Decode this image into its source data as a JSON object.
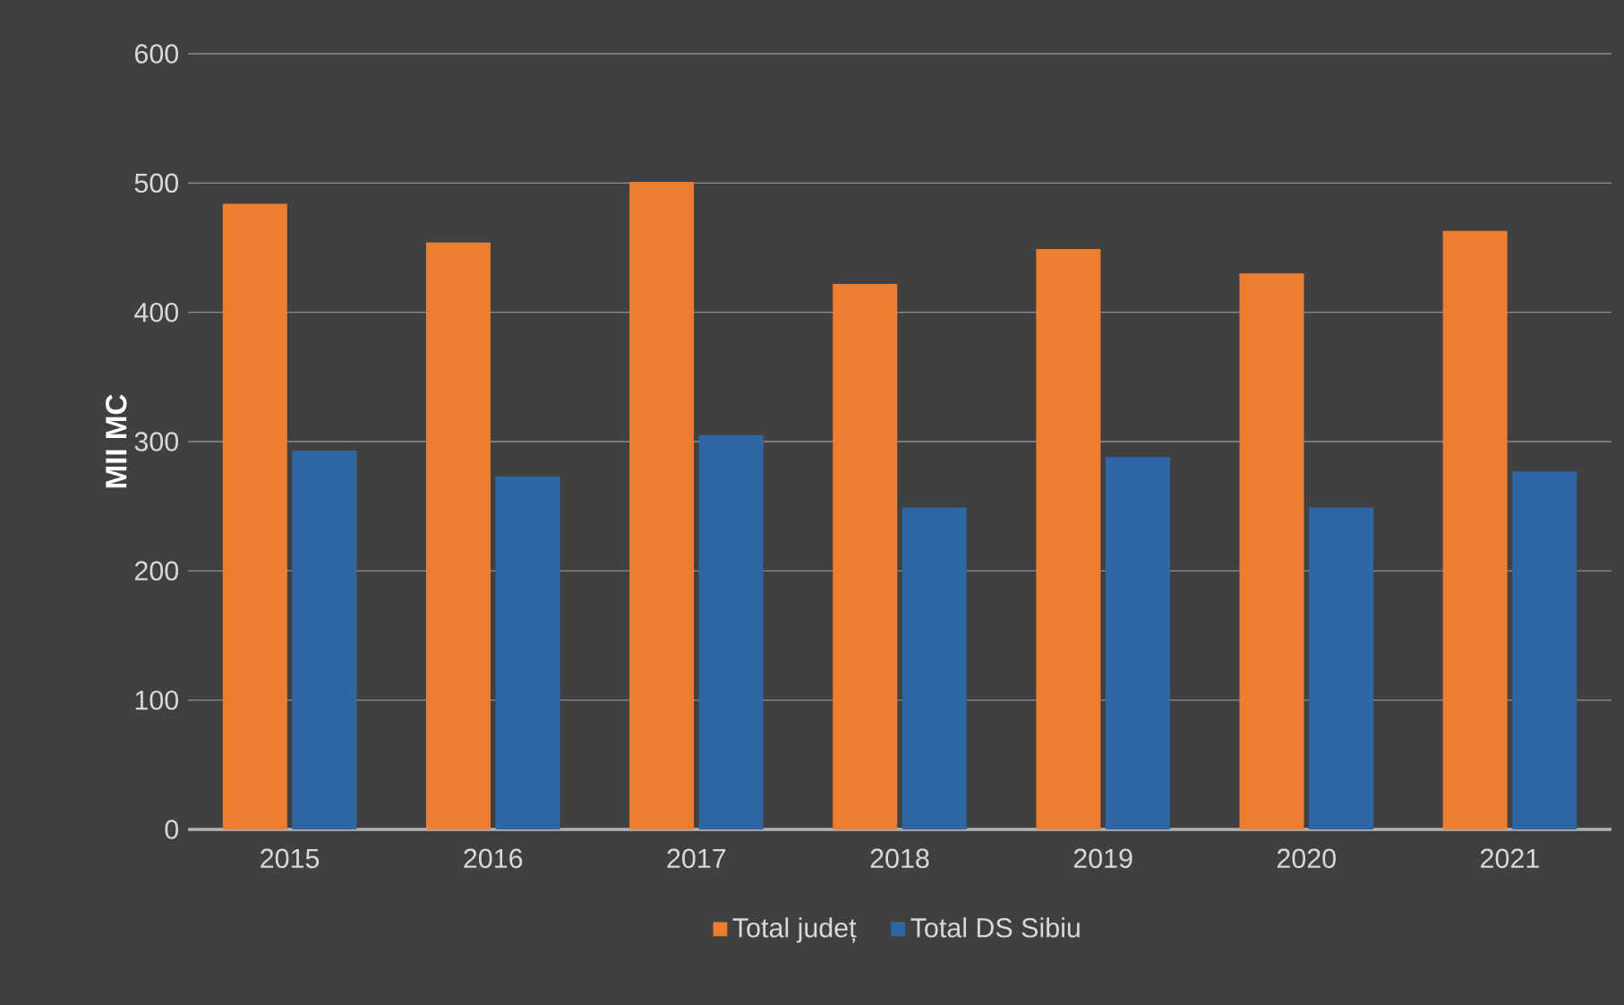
{
  "chart_data": {
    "type": "bar",
    "ylabel": "MII MC",
    "categories": [
      "2015",
      "2016",
      "2017",
      "2018",
      "2019",
      "2020",
      "2021"
    ],
    "series": [
      {
        "name": "Total județ",
        "color": "#ed7d31",
        "values": [
          484,
          454,
          501,
          422,
          449,
          430,
          463
        ]
      },
      {
        "name": "Total DS Sibiu",
        "color": "#2e67a3",
        "values": [
          293,
          273,
          305,
          249,
          288,
          249,
          277
        ]
      }
    ],
    "ylim": [
      0,
      600
    ],
    "yticks": [
      0,
      100,
      200,
      300,
      400,
      500,
      600
    ],
    "grid": "y",
    "legend": "bottom"
  }
}
